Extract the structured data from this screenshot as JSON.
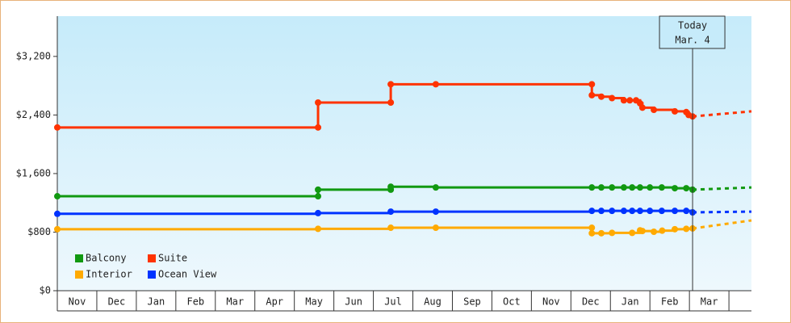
{
  "chart_data": {
    "type": "step-line",
    "xlim": [
      0,
      17.57
    ],
    "ylim": [
      0,
      3750
    ],
    "yticks": [
      {
        "value": 0,
        "label": "$0"
      },
      {
        "value": 800,
        "label": "$800"
      },
      {
        "value": 1600,
        "label": "$1,600"
      },
      {
        "value": 2400,
        "label": "$2,400"
      },
      {
        "value": 3200,
        "label": "$3,200"
      }
    ],
    "xticks": [
      {
        "value": 0,
        "label": "Nov"
      },
      {
        "value": 1,
        "label": "Dec"
      },
      {
        "value": 2,
        "label": "Jan"
      },
      {
        "value": 3,
        "label": "Feb"
      },
      {
        "value": 4,
        "label": "Mar"
      },
      {
        "value": 5,
        "label": "Apr"
      },
      {
        "value": 6,
        "label": "May"
      },
      {
        "value": 7,
        "label": "Jun"
      },
      {
        "value": 8,
        "label": "Jul"
      },
      {
        "value": 9,
        "label": "Aug"
      },
      {
        "value": 10,
        "label": "Sep"
      },
      {
        "value": 11,
        "label": "Oct"
      },
      {
        "value": 12,
        "label": "Nov"
      },
      {
        "value": 13,
        "label": "Dec"
      },
      {
        "value": 14,
        "label": "Jan"
      },
      {
        "value": 15,
        "label": "Feb"
      },
      {
        "value": 16,
        "label": "Mar"
      },
      {
        "value": 17
      }
    ],
    "today_x": 16.08,
    "today_label": [
      "Today",
      "Mar. 4"
    ],
    "series": [
      {
        "name": "Balcony",
        "color": "#119911",
        "x": [
          0,
          6.6,
          6.6,
          8.44,
          8.44,
          9.58,
          13.53,
          13.77,
          14.04,
          14.34,
          14.55,
          14.75,
          15.0,
          15.3,
          15.63,
          15.92,
          16.08
        ],
        "values": [
          1290,
          1290,
          1380,
          1380,
          1420,
          1410,
          1410,
          1410,
          1410,
          1410,
          1410,
          1410,
          1410,
          1410,
          1400,
          1400,
          1380
        ],
        "projection": 1410
      },
      {
        "name": "Suite",
        "color": "#ff3300",
        "x": [
          0,
          6.6,
          6.6,
          8.44,
          8.44,
          9.58,
          13.53,
          13.53,
          13.77,
          14.04,
          14.34,
          14.49,
          14.65,
          14.75,
          14.81,
          15.1,
          15.63,
          15.92,
          15.98,
          16.08
        ],
        "values": [
          2230,
          2230,
          2570,
          2570,
          2820,
          2820,
          2820,
          2670,
          2650,
          2630,
          2600,
          2600,
          2600,
          2560,
          2500,
          2470,
          2450,
          2440,
          2400,
          2380
        ],
        "projection": 2450
      },
      {
        "name": "Interior",
        "color": "#ffaa00",
        "x": [
          0,
          6.6,
          8.44,
          9.58,
          13.53,
          13.53,
          13.77,
          14.04,
          14.55,
          14.75,
          14.81,
          15.1,
          15.31,
          15.63,
          15.92,
          16.08
        ],
        "values": [
          840,
          845,
          860,
          860,
          860,
          785,
          785,
          790,
          790,
          825,
          815,
          805,
          820,
          840,
          845,
          850
        ],
        "projection": 960
      },
      {
        "name": "Ocean View",
        "color": "#0033ff",
        "x": [
          0,
          6.6,
          8.44,
          9.58,
          13.53,
          13.77,
          14.04,
          14.34,
          14.55,
          14.75,
          15.0,
          15.3,
          15.63,
          15.92,
          16.08
        ],
        "values": [
          1050,
          1060,
          1080,
          1080,
          1090,
          1090,
          1090,
          1090,
          1090,
          1090,
          1090,
          1090,
          1090,
          1090,
          1070
        ],
        "projection": 1080
      }
    ]
  }
}
